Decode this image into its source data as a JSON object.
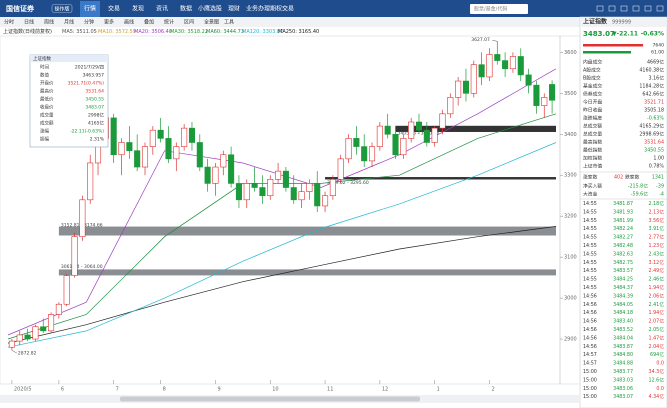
{
  "topbar": {
    "logo": "国信证券",
    "badge": "操作版",
    "tabs": [
      "行情",
      "交易",
      "发现",
      "资讯",
      "数据",
      "小鹰选股",
      "理财",
      "业务办理",
      "期权交易"
    ],
    "search": "股票/基金/代码"
  },
  "toolbar": [
    "分时",
    "日线",
    "周线",
    "月线",
    "分钟",
    "更多",
    "画线",
    "叠加",
    "统计",
    "区间",
    "全景图",
    "工具"
  ],
  "indicator": {
    "name": "上证指数(日线前复权)",
    "items": [
      {
        "text": "MA5: 3511.05",
        "color": "#555555"
      },
      {
        "text": "MA10: 3572.59",
        "color": "#d4a017"
      },
      {
        "text": "MA20: 3506.40",
        "color": "#a040c0"
      },
      {
        "text": "MA30: 3518.22",
        "color": "#2a9d2a"
      },
      {
        "text": "MA60: 3444.73",
        "color": "#1e8e3e"
      },
      {
        "text": "MA120: 3303.87",
        "color": "#20b8d0"
      },
      {
        "text": "MA250: 3165.40",
        "color": "#222222"
      }
    ]
  },
  "chart_data": {
    "type": "candlestick",
    "up_color": "#e03030",
    "down_color": "#1a9a3a",
    "candles": [
      [
        2880,
        2900,
        2872.82,
        2895
      ],
      [
        2895,
        2920,
        2885,
        2910
      ],
      [
        2910,
        2925,
        2895,
        2900
      ],
      [
        2900,
        2935,
        2895,
        2930
      ],
      [
        2930,
        2950,
        2915,
        2920
      ],
      [
        2920,
        2965,
        2915,
        2960
      ],
      [
        2960,
        2990,
        2950,
        2985
      ],
      [
        2985,
        3060,
        2980,
        3055
      ],
      [
        3055,
        3160,
        3050,
        3150
      ],
      [
        3150,
        3250,
        3140,
        3240
      ],
      [
        3240,
        3350,
        3230,
        3330
      ],
      [
        3330,
        3400,
        3300,
        3390
      ],
      [
        3390,
        3458,
        3370,
        3440
      ],
      [
        3440,
        3450,
        3330,
        3350
      ],
      [
        3350,
        3390,
        3300,
        3380
      ],
      [
        3380,
        3420,
        3340,
        3360
      ],
      [
        3360,
        3400,
        3310,
        3320
      ],
      [
        3320,
        3380,
        3300,
        3370
      ],
      [
        3370,
        3420,
        3350,
        3410
      ],
      [
        3410,
        3440,
        3380,
        3390
      ],
      [
        3390,
        3420,
        3330,
        3340
      ],
      [
        3340,
        3380,
        3310,
        3370
      ],
      [
        3370,
        3425,
        3360,
        3415
      ],
      [
        3415,
        3430,
        3360,
        3380
      ],
      [
        3380,
        3400,
        3310,
        3320
      ],
      [
        3320,
        3340,
        3260,
        3280
      ],
      [
        3280,
        3330,
        3250,
        3320
      ],
      [
        3320,
        3360,
        3300,
        3350
      ],
      [
        3350,
        3370,
        3270,
        3280
      ],
      [
        3280,
        3300,
        3220,
        3240
      ],
      [
        3240,
        3290,
        3220,
        3280
      ],
      [
        3280,
        3320,
        3260,
        3270
      ],
      [
        3270,
        3300,
        3230,
        3250
      ],
      [
        3250,
        3300,
        3240,
        3290
      ],
      [
        3290,
        3330,
        3280,
        3310
      ],
      [
        3310,
        3320,
        3260,
        3270
      ],
      [
        3270,
        3300,
        3230,
        3240
      ],
      [
        3240,
        3280,
        3220,
        3260
      ],
      [
        3260,
        3290,
        3240,
        3280
      ],
      [
        3280,
        3310,
        3210,
        3225
      ],
      [
        3225,
        3260,
        3210,
        3250
      ],
      [
        3250,
        3300,
        3240,
        3290
      ],
      [
        3290,
        3350,
        3280,
        3340
      ],
      [
        3340,
        3400,
        3330,
        3390
      ],
      [
        3390,
        3420,
        3350,
        3370
      ],
      [
        3370,
        3400,
        3320,
        3335
      ],
      [
        3335,
        3380,
        3320,
        3370
      ],
      [
        3370,
        3430,
        3360,
        3420
      ],
      [
        3420,
        3450,
        3390,
        3400
      ],
      [
        3400,
        3420,
        3340,
        3350
      ],
      [
        3350,
        3400,
        3340,
        3390
      ],
      [
        3390,
        3440,
        3380,
        3430
      ],
      [
        3430,
        3450,
        3400,
        3410
      ],
      [
        3410,
        3430,
        3370,
        3380
      ],
      [
        3380,
        3420,
        3370,
        3415
      ],
      [
        3415,
        3460,
        3400,
        3450
      ],
      [
        3450,
        3500,
        3440,
        3490
      ],
      [
        3490,
        3540,
        3470,
        3530
      ],
      [
        3530,
        3560,
        3480,
        3500
      ],
      [
        3500,
        3580,
        3490,
        3570
      ],
      [
        3570,
        3600,
        3520,
        3540
      ],
      [
        3540,
        3610,
        3530,
        3595
      ],
      [
        3595,
        3627.07,
        3570,
        3580
      ],
      [
        3580,
        3600,
        3540,
        3560
      ],
      [
        3560,
        3600,
        3550,
        3590
      ],
      [
        3590,
        3610,
        3530,
        3545
      ],
      [
        3545,
        3560,
        3500,
        3520
      ],
      [
        3520,
        3530,
        3450,
        3470
      ],
      [
        3470,
        3500,
        3440,
        3490
      ],
      [
        3521.71,
        3531.64,
        3450.55,
        3483.07
      ]
    ],
    "ylim": [
      2800,
      3640
    ],
    "yticks": [
      2900,
      3000,
      3100,
      3200,
      3300,
      3400,
      3500,
      3600
    ],
    "xticks": [
      {
        "value": 0,
        "label": "2020/5"
      },
      {
        "value": 6,
        "label": "6"
      },
      {
        "value": 13,
        "label": "7"
      },
      {
        "value": 19,
        "label": "8"
      },
      {
        "value": 26,
        "label": "9"
      },
      {
        "value": 33,
        "label": "10"
      },
      {
        "value": 40,
        "label": "11"
      },
      {
        "value": 47,
        "label": "12"
      },
      {
        "value": 54,
        "label": "1"
      },
      {
        "value": 61,
        "label": "2"
      }
    ],
    "ma_lines": [
      {
        "name": "MA250",
        "color": "#222222",
        "values": [
          2890,
          2935,
          2990,
          3040,
          3080,
          3120,
          3150,
          3175
        ]
      },
      {
        "name": "MA120",
        "color": "#20b8d0",
        "values": [
          2880,
          2920,
          3000,
          3090,
          3170,
          3230,
          3300,
          3380
        ]
      },
      {
        "name": "MA60",
        "color": "#1e8e3e",
        "values": [
          2900,
          2960,
          3150,
          3280,
          3280,
          3300,
          3390,
          3450
        ]
      },
      {
        "name": "MA20",
        "color": "#a040c0",
        "values": [
          2910,
          2990,
          3360,
          3330,
          3270,
          3350,
          3450,
          3560
        ]
      }
    ],
    "zones": [
      {
        "low": 3405.65,
        "high": 3420.75,
        "label": "3405.65 - 3420.75",
        "start": 49
      },
      {
        "low": 3289.62,
        "high": 3295.6,
        "label": "3289.62 - 3295.60",
        "start": 40
      },
      {
        "low": 3152.81,
        "high": 3174.66,
        "label": "3152.81 - 3174.66",
        "start": 6
      },
      {
        "low": 3061.44,
        "high": 3064.0,
        "label": "3061.44 - 3064.00",
        "start": 6
      }
    ],
    "annotations": [
      {
        "index": 62,
        "value": 3627.07,
        "label": "3627.07"
      },
      {
        "index": 0,
        "value": 2872.82,
        "label": "2872.82"
      }
    ]
  },
  "infobox": {
    "title": "上证指数",
    "rows": [
      [
        "时间",
        "2021/7/29/四",
        "#333333"
      ],
      [
        "数值",
        "3463.957",
        "#333333"
      ],
      [
        "开盘价",
        "3521.71(0.47%)",
        "#e03030"
      ],
      [
        "最高价",
        "3531.64",
        "#e03030"
      ],
      [
        "最低价",
        "3450.55",
        "#1a9a3a"
      ],
      [
        "收盘价",
        "3483.07",
        "#1a9a3a"
      ],
      [
        "成交量",
        "2998亿",
        "#333333"
      ],
      [
        "成交额",
        "4165亿",
        "#333333"
      ],
      [
        "涨幅",
        "-22.11(-0.63%)",
        "#1a9a3a"
      ],
      [
        "振幅",
        "2.31%",
        "#333333"
      ]
    ]
  },
  "quote": {
    "name": "上证指数",
    "code": "999999",
    "price": "3483.07",
    "change": "▼-22.11",
    "pct": "-0.63%",
    "bar_top": "7640",
    "bar_bottom": "61.00",
    "stats": [
      [
        "内盘成交",
        "4669亿",
        "#333333"
      ],
      [
        "A股成交",
        "4160.38亿",
        "#333333"
      ],
      [
        "B股成交",
        "3.16亿",
        "#333333"
      ],
      [
        "基金成交",
        "1184.28亿",
        "#333333"
      ],
      [
        "债券成交",
        "642.66亿",
        "#333333"
      ],
      [
        "今日开盘",
        "3521.71",
        "#e03030"
      ],
      [
        "昨日收盘",
        "3505.18",
        "#333333"
      ],
      [
        "涨跌幅度",
        "-0.63%",
        "#1a9a3a"
      ],
      [
        "总成交额",
        "4165.29亿",
        "#333333"
      ],
      [
        "总成交量",
        "2998.69亿",
        "#333333"
      ],
      [
        "最高指数",
        "3531.64",
        "#e03030"
      ],
      [
        "最低指数",
        "3450.55",
        "#1a9a3a"
      ],
      [
        "加权指数",
        "1.00",
        "#333333"
      ],
      [
        "上证市值",
        "0.78%",
        "#333333"
      ]
    ],
    "breadth": [
      "涨家数",
      "402",
      "跌家数",
      "1341"
    ],
    "flows": [
      [
        "净买入额",
        "-215.8亿",
        "-39"
      ],
      [
        "大资金",
        "-59.6亿",
        "-4"
      ]
    ],
    "ticks": [
      [
        "14:55",
        "3481.87",
        "2.18亿"
      ],
      [
        "14:55",
        "3481.93",
        "2.13亿"
      ],
      [
        "14:55",
        "3481.99",
        "3.56亿"
      ],
      [
        "14:55",
        "3482.24",
        "3.91亿"
      ],
      [
        "14:55",
        "3482.27",
        "2.77亿"
      ],
      [
        "14:55",
        "3482.48",
        "1.23亿"
      ],
      [
        "14:55",
        "3482.63",
        "2.43亿"
      ],
      [
        "14:55",
        "3482.75",
        "3.12亿"
      ],
      [
        "14:55",
        "3483.57",
        "2.49亿"
      ],
      [
        "14:55",
        "3484.25",
        "2.46亿"
      ],
      [
        "14:55",
        "3484.37",
        "1.94亿"
      ],
      [
        "14:56",
        "3484.39",
        "2.06亿"
      ],
      [
        "14:56",
        "3484.05",
        "2.41亿"
      ],
      [
        "14:56",
        "3484.18",
        "1.94亿"
      ],
      [
        "14:56",
        "3483.40",
        "2.07亿"
      ],
      [
        "14:56",
        "3483.52",
        "2.05亿"
      ],
      [
        "14:56",
        "3484.04",
        "1.47亿"
      ],
      [
        "14:56",
        "3483.87",
        "2.04亿"
      ],
      [
        "14:57",
        "3484.80",
        "694亿"
      ],
      [
        "14:57",
        "3484.88",
        "0.0"
      ],
      [
        "15:00",
        "3483.77",
        "34.3亿"
      ],
      [
        "15:00",
        "3483.03",
        "12.6亿"
      ],
      [
        "15:00",
        "3483.06",
        "0.0"
      ],
      [
        "15:00",
        "3483.07",
        "4.34亿"
      ]
    ]
  }
}
